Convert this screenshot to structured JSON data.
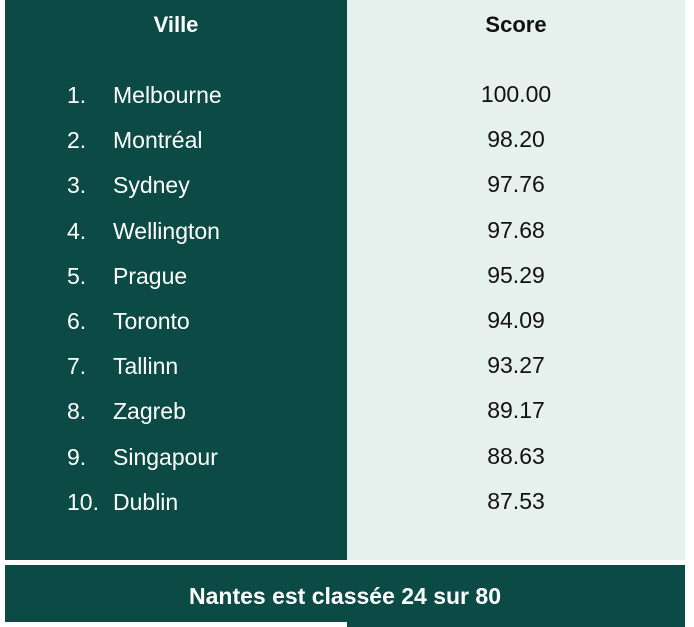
{
  "table": {
    "headers": {
      "city": "Ville",
      "score": "Score"
    },
    "rows": [
      {
        "rank": "1.",
        "city": "Melbourne",
        "score": "100.00"
      },
      {
        "rank": "2.",
        "city": "Montréal",
        "score": "98.20"
      },
      {
        "rank": "3.",
        "city": "Sydney",
        "score": "97.76"
      },
      {
        "rank": "4.",
        "city": "Wellington",
        "score": "97.68"
      },
      {
        "rank": "5.",
        "city": "Prague",
        "score": "95.29"
      },
      {
        "rank": "6.",
        "city": "Toronto",
        "score": "94.09"
      },
      {
        "rank": "7.",
        "city": "Tallinn",
        "score": "93.27"
      },
      {
        "rank": "8.",
        "city": "Zagreb",
        "score": "89.17"
      },
      {
        "rank": "9.",
        "city": "Singapour",
        "score": "88.63"
      },
      {
        "rank": "10.",
        "city": "Dublin",
        "score": "87.53"
      }
    ],
    "footer": "Nantes est classée 24 sur 80"
  },
  "colors": {
    "dark_green": "#0b4a45",
    "light_green": "#e6f1ed",
    "text_light": "#ffffff",
    "text_dark": "#111111"
  }
}
